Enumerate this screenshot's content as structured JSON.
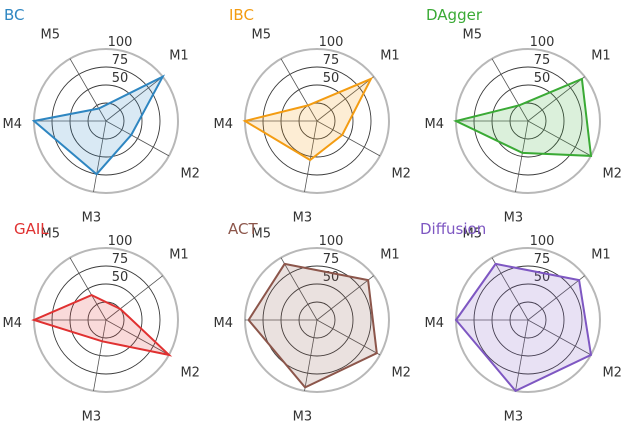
{
  "chart_data": [
    {
      "type": "radar",
      "title": "BC",
      "color": "#2e86c1",
      "axes": [
        "M1",
        "M2",
        "M3",
        "M4",
        "M5"
      ],
      "rlim": [
        0,
        100
      ],
      "rticks": [
        "50",
        "75",
        "100"
      ],
      "values": [
        100,
        40,
        75,
        100,
        20
      ]
    },
    {
      "type": "radar",
      "title": "IBC",
      "color": "#f39c12",
      "axes": [
        "M1",
        "M2",
        "M3",
        "M4",
        "M5"
      ],
      "rlim": [
        0,
        100
      ],
      "rticks": [
        "50",
        "75",
        "100"
      ],
      "values": [
        95,
        40,
        55,
        100,
        25
      ]
    },
    {
      "type": "radar",
      "title": "DAgger",
      "color": "#3aaa35",
      "axes": [
        "M1",
        "M2",
        "M3",
        "M4",
        "M5"
      ],
      "rlim": [
        0,
        100
      ],
      "rticks": [
        "50",
        "75",
        "100"
      ],
      "values": [
        95,
        100,
        45,
        100,
        25
      ]
    },
    {
      "type": "radar",
      "title": "GAIL",
      "color": "#e03131",
      "axes": [
        "M1",
        "M2",
        "M3",
        "M4",
        "M5"
      ],
      "rlim": [
        0,
        100
      ],
      "rticks": [
        "50",
        "75",
        "100"
      ],
      "values": [
        25,
        100,
        30,
        100,
        40
      ]
    },
    {
      "type": "radar",
      "title": "ACT",
      "color": "#8c564b",
      "axes": [
        "M1",
        "M2",
        "M3",
        "M4",
        "M5"
      ],
      "rlim": [
        0,
        100
      ],
      "rticks": [
        "50",
        "75",
        "100"
      ],
      "values": [
        90,
        95,
        95,
        95,
        90
      ]
    },
    {
      "type": "radar",
      "title": "Diffusion",
      "color": "#7e57c2",
      "axes": [
        "M1",
        "M2",
        "M3",
        "M4",
        "M5"
      ],
      "rlim": [
        0,
        100
      ],
      "rticks": [
        "50",
        "75",
        "100"
      ],
      "values": [
        90,
        100,
        100,
        100,
        90
      ]
    }
  ]
}
